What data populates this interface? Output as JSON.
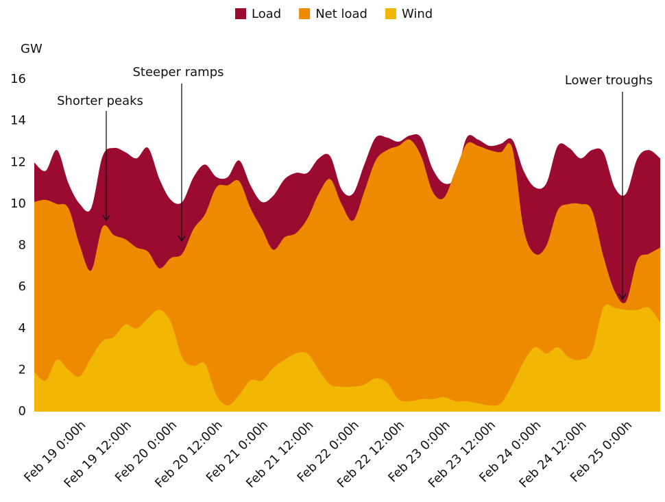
{
  "chart_data": {
    "type": "area",
    "y_label": "GW",
    "categories": [
      null,
      null,
      null,
      null,
      "Feb 19  0:00h",
      null,
      null,
      null,
      "Feb 19  12:00h",
      null,
      null,
      null,
      "Feb 20  0:00h",
      null,
      null,
      null,
      "Feb 20  12:00h",
      null,
      null,
      null,
      "Feb 21  0:00h",
      null,
      null,
      null,
      "Feb 21  12:00h",
      null,
      null,
      null,
      "Feb 22  0:00h",
      null,
      null,
      null,
      "Feb 22  12:00h",
      null,
      null,
      null,
      "Feb 23  0:00h",
      null,
      null,
      null,
      "Feb 23  12:00h",
      null,
      null,
      null,
      "Feb 24  0:00h",
      null,
      null,
      null,
      "Feb 24  12:00h",
      null,
      null,
      null,
      "Feb 25  0:00h",
      null,
      null,
      null
    ],
    "series": [
      {
        "name": "Load",
        "color": "#9b0b2f",
        "values": [
          12.0,
          11.6,
          12.6,
          11.0,
          10.0,
          9.8,
          12.3,
          12.7,
          12.5,
          12.2,
          12.7,
          11.2,
          10.2,
          10.1,
          11.3,
          11.9,
          11.3,
          11.3,
          12.1,
          10.9,
          10.1,
          10.4,
          11.2,
          11.5,
          11.5,
          12.2,
          12.3,
          10.7,
          10.5,
          11.9,
          13.2,
          13.2,
          13.0,
          13.3,
          13.2,
          11.7,
          11.0,
          11.3,
          13.2,
          13.1,
          12.8,
          12.9,
          13.1,
          11.6,
          10.8,
          11.0,
          12.8,
          12.7,
          12.2,
          12.6,
          12.5,
          10.8,
          10.5,
          12.2,
          12.6,
          12.2
        ]
      },
      {
        "name": "Net load",
        "color": "#ee8a00",
        "values": [
          10.1,
          10.2,
          10.0,
          9.8,
          8.0,
          6.8,
          8.9,
          8.5,
          8.3,
          7.9,
          7.7,
          6.9,
          7.4,
          7.6,
          8.8,
          9.5,
          10.8,
          10.9,
          11.1,
          9.8,
          8.8,
          7.8,
          8.4,
          8.6,
          9.3,
          10.5,
          11.2,
          10.0,
          9.2,
          10.6,
          12.1,
          12.6,
          12.8,
          13.1,
          12.3,
          10.6,
          10.3,
          11.6,
          12.9,
          12.8,
          12.6,
          12.5,
          12.7,
          8.8,
          7.6,
          8.0,
          9.7,
          10.0,
          10.0,
          9.7,
          7.5,
          5.8,
          5.3,
          7.3,
          7.6,
          7.9
        ]
      },
      {
        "name": "Wind",
        "color": "#f2b705",
        "values": [
          1.9,
          1.5,
          2.5,
          2.0,
          1.7,
          2.6,
          3.4,
          3.6,
          4.2,
          4.0,
          4.5,
          4.9,
          4.3,
          2.6,
          2.2,
          2.3,
          0.8,
          0.3,
          0.8,
          1.5,
          1.5,
          2.1,
          2.5,
          2.8,
          2.8,
          2.0,
          1.3,
          1.2,
          1.2,
          1.3,
          1.6,
          1.4,
          0.6,
          0.5,
          0.6,
          0.6,
          0.7,
          0.5,
          0.5,
          0.4,
          0.3,
          0.4,
          1.3,
          2.4,
          3.1,
          2.8,
          3.1,
          2.6,
          2.5,
          2.9,
          5.0,
          5.0,
          4.9,
          4.9,
          5.0,
          4.3
        ]
      }
    ],
    "ylim": [
      0,
      16
    ],
    "yticks": [
      0,
      2,
      4,
      6,
      8,
      10,
      12,
      14,
      16
    ],
    "grid": false,
    "legend": "top",
    "annotations": [
      "Shorter peaks",
      "Steeper ramps",
      "Lower troughs"
    ]
  }
}
